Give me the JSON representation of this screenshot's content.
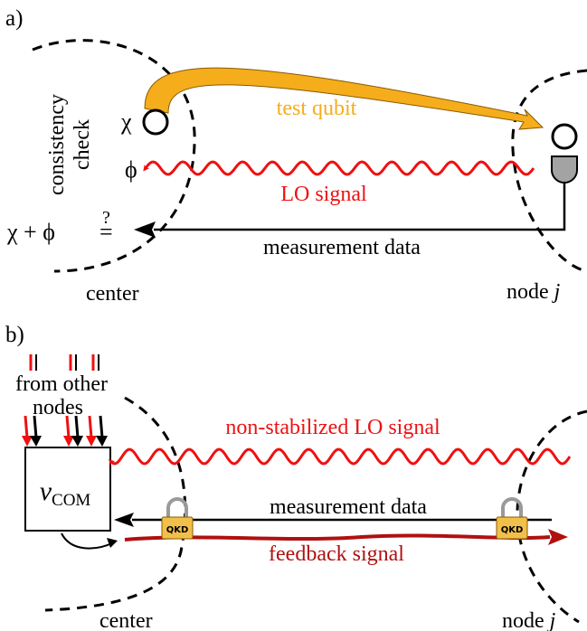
{
  "colors": {
    "red": "#ee1111",
    "dark_red": "#b01010",
    "orange": "#f5ad1b",
    "orange_edge": "#8a5a00",
    "gray": "#a3a3a3",
    "lock_gold": "#f1c04b"
  },
  "panel_a": {
    "label": "a)",
    "consistency": [
      "consistency",
      "check"
    ],
    "chi": "χ",
    "phi": "ϕ",
    "sum": "χ + ϕ",
    "equals": "=",
    "question": "?",
    "test_qubit": "test qubit",
    "lo_signal": "LO signal",
    "measurement_data": "measurement data",
    "center": "center",
    "node_prefix": "node ",
    "node_j": "j"
  },
  "panel_b": {
    "label": "b)",
    "from_other": "from other",
    "nodes": "nodes",
    "v_letter": "v",
    "v_sub": "COM",
    "non_stabilized": "non-stabilized LO signal",
    "measurement_data": "measurement data",
    "feedback": "feedback signal",
    "qkd_left": "QKD",
    "qkd_right": "QKD",
    "center": "center",
    "node_prefix": "node ",
    "node_j": "j"
  }
}
